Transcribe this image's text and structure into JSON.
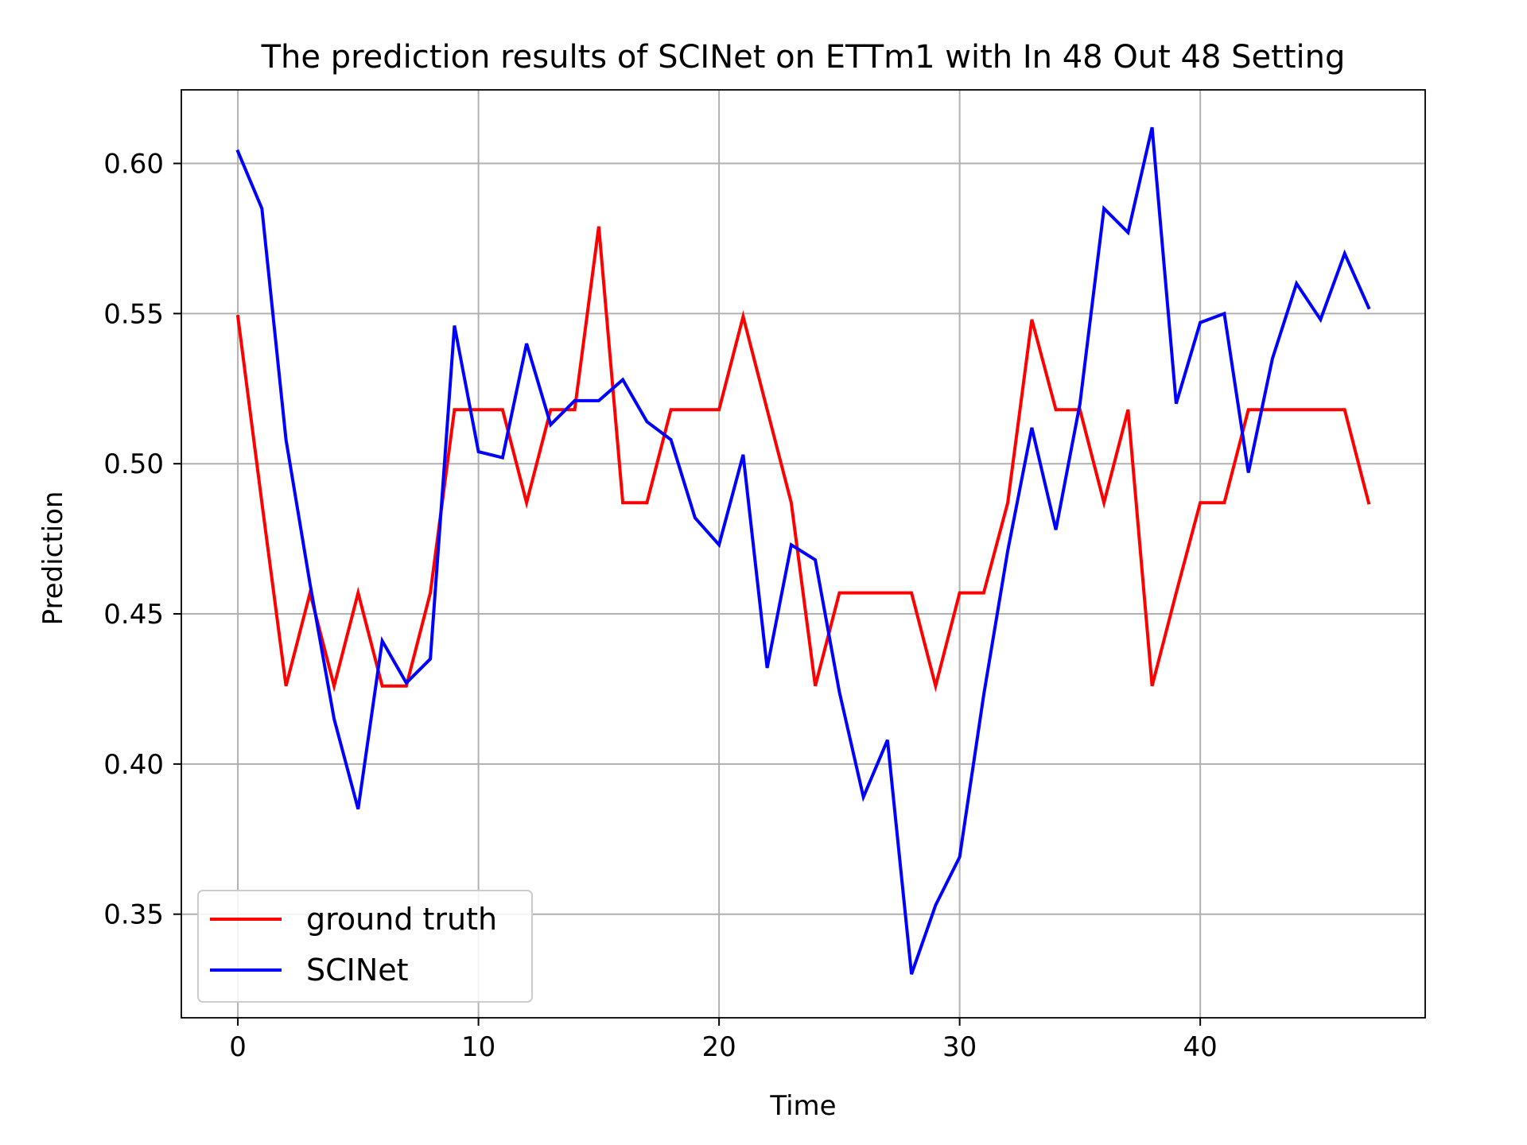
{
  "chart_data": {
    "type": "line",
    "title": "The prediction results of SCINet on ETTm1 with In 48 Out 48 Setting",
    "xlabel": "Time",
    "ylabel": "Prediction",
    "xlim": [
      -2.35,
      49.35
    ],
    "ylim": [
      0.3155,
      0.6245
    ],
    "xticks": [
      0,
      10,
      20,
      30,
      40
    ],
    "yticks": [
      0.35,
      0.4,
      0.45,
      0.5,
      0.55,
      0.6
    ],
    "xtick_labels": [
      "0",
      "10",
      "20",
      "30",
      "40"
    ],
    "ytick_labels": [
      "0.35",
      "0.40",
      "0.45",
      "0.50",
      "0.55",
      "0.60"
    ],
    "grid": true,
    "legend_position": "lower-left",
    "x": [
      0,
      1,
      2,
      3,
      4,
      5,
      6,
      7,
      8,
      9,
      10,
      11,
      12,
      13,
      14,
      15,
      16,
      17,
      18,
      19,
      20,
      21,
      22,
      23,
      24,
      25,
      26,
      27,
      28,
      29,
      30,
      31,
      32,
      33,
      34,
      35,
      36,
      37,
      38,
      39,
      40,
      41,
      42,
      43,
      44,
      45,
      46,
      47
    ],
    "series": [
      {
        "name": "ground truth",
        "color": "#ff0000",
        "values": [
          0.549,
          0.487,
          0.426,
          0.457,
          0.426,
          0.457,
          0.426,
          0.426,
          0.457,
          0.518,
          0.518,
          0.518,
          0.487,
          0.518,
          0.518,
          0.579,
          0.487,
          0.487,
          0.518,
          0.518,
          0.518,
          0.549,
          0.518,
          0.487,
          0.426,
          0.457,
          0.457,
          0.457,
          0.457,
          0.426,
          0.457,
          0.457,
          0.487,
          0.548,
          0.518,
          0.518,
          0.487,
          0.518,
          0.426,
          0.457,
          0.487,
          0.487,
          0.518,
          0.518,
          0.518,
          0.518,
          0.518,
          0.487
        ]
      },
      {
        "name": "SCINet",
        "color": "#0000ff",
        "values": [
          0.604,
          0.585,
          0.508,
          0.46,
          0.415,
          0.385,
          0.441,
          0.427,
          0.435,
          0.546,
          0.504,
          0.502,
          0.54,
          0.513,
          0.521,
          0.521,
          0.528,
          0.514,
          0.508,
          0.482,
          0.473,
          0.503,
          0.432,
          0.473,
          0.468,
          0.424,
          0.389,
          0.408,
          0.33,
          0.353,
          0.369,
          0.423,
          0.471,
          0.512,
          0.478,
          0.52,
          0.585,
          0.577,
          0.612,
          0.52,
          0.547,
          0.55,
          0.497,
          0.535,
          0.56,
          0.548,
          0.57,
          0.552
        ]
      }
    ]
  }
}
